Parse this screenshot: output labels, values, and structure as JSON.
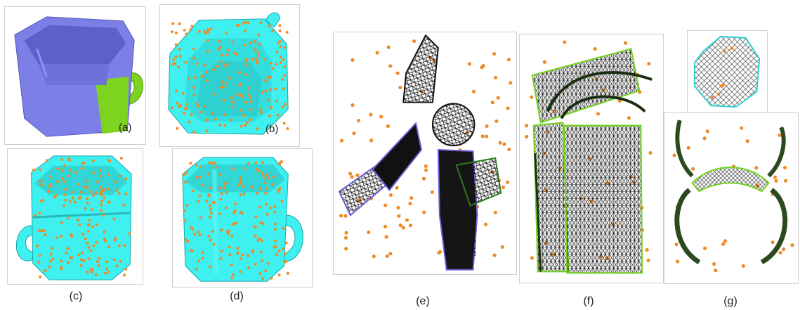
{
  "panels": {
    "a": {
      "label": "(a)"
    },
    "b": {
      "label": "(b)"
    },
    "c": {
      "caption": "(c)"
    },
    "d": {
      "caption": "(d)"
    },
    "e": {
      "caption": "(e)"
    },
    "f": {
      "caption": "(f)"
    },
    "g": {
      "caption": "(g)"
    }
  },
  "colors": {
    "mug_blue": "#7b7fe6",
    "mug_green": "#7ed320",
    "mug_cyan": "#3ff0f0",
    "sample_dot": "#f08a24",
    "mesh_dark": "#111111",
    "mesh_edge_green": "#6fd21b",
    "mesh_edge_purple": "#6b5fd8"
  }
}
